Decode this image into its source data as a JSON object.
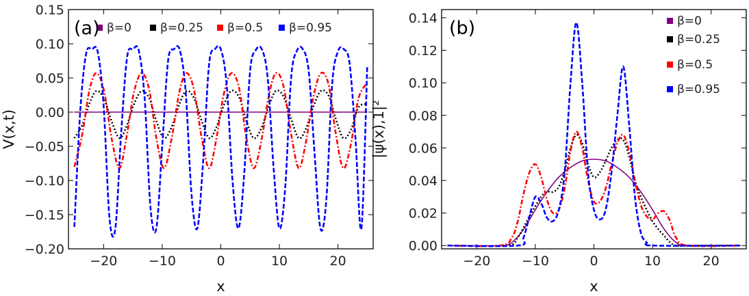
{
  "chart_data": [
    {
      "panel_label": "(a)",
      "type": "line",
      "xlabel": "x",
      "ylabel": "V(x,t)",
      "xlim": [
        -26,
        26
      ],
      "ylim": [
        -0.2,
        0.15
      ],
      "x_ticks": [
        -20,
        -10,
        0,
        10,
        20
      ],
      "x_tick_labels": [
        "−20",
        "−10",
        "0",
        "10",
        "20"
      ],
      "y_ticks": [
        -0.2,
        -0.15,
        -0.1,
        -0.05,
        0.0,
        0.05,
        0.1,
        0.15
      ],
      "y_tick_labels": [
        "−0.20",
        "−0.15",
        "−0.10",
        "−0.05",
        "0.00",
        "0.05",
        "0.10",
        "0.15"
      ],
      "legend_position": "top",
      "series": [
        {
          "name": "β=0",
          "color": "#800080",
          "style": "solid",
          "x": [
            -25,
            25
          ],
          "y": [
            0,
            0
          ]
        },
        {
          "name": "β=0.25",
          "color": "#000000",
          "style": "dotted",
          "x": [
            -25,
            -23.7,
            -22.4,
            -21.2,
            -19.9,
            -18.6,
            -17.3,
            -16.1,
            -14.8,
            -13.5,
            -12.2,
            -11.0,
            -9.7,
            -8.4,
            -7.1,
            -5.9,
            -4.6,
            -3.3,
            -2.0,
            -0.8,
            0.5,
            1.8,
            3.1,
            4.3,
            5.6,
            6.9,
            8.2,
            9.4,
            10.7,
            12.0,
            13.3,
            14.5,
            15.8,
            17.1,
            18.4,
            19.6,
            20.9,
            22.2,
            23.5,
            25.0
          ],
          "y": [
            -0.038,
            -0.02,
            0.013,
            0.031,
            0.019,
            -0.014,
            -0.038,
            -0.021,
            0.012,
            0.031,
            0.02,
            -0.013,
            -0.038,
            -0.022,
            0.011,
            0.031,
            0.021,
            -0.012,
            -0.038,
            -0.023,
            0.01,
            0.031,
            0.022,
            -0.011,
            -0.038,
            -0.024,
            0.009,
            0.031,
            0.023,
            -0.01,
            -0.038,
            -0.025,
            0.008,
            0.031,
            0.024,
            -0.009,
            -0.038,
            -0.026,
            0.007,
            0.012
          ]
        },
        {
          "name": "β=0.5",
          "color": "#ff0000",
          "style": "dashdot",
          "x": [
            -25,
            -23.7,
            -22.4,
            -21.2,
            -19.9,
            -18.6,
            -17.3,
            -16.1,
            -14.8,
            -13.5,
            -12.2,
            -11.0,
            -9.7,
            -8.4,
            -7.1,
            -5.9,
            -4.6,
            -3.3,
            -2.0,
            -0.8,
            0.5,
            1.8,
            3.1,
            4.3,
            5.6,
            6.9,
            8.2,
            9.4,
            10.7,
            12.0,
            13.3,
            14.5,
            15.8,
            17.1,
            18.4,
            19.6,
            20.9,
            22.2,
            23.5,
            25.0
          ],
          "y": [
            -0.08,
            -0.035,
            0.033,
            0.057,
            0.03,
            -0.04,
            -0.082,
            -0.037,
            0.03,
            0.057,
            0.032,
            -0.038,
            -0.082,
            -0.039,
            0.028,
            0.057,
            0.034,
            -0.036,
            -0.082,
            -0.041,
            0.026,
            0.057,
            0.036,
            -0.034,
            -0.082,
            -0.043,
            0.024,
            0.057,
            0.038,
            -0.032,
            -0.082,
            -0.045,
            0.022,
            0.057,
            0.04,
            -0.03,
            -0.082,
            -0.047,
            0.02,
            0.043
          ]
        },
        {
          "name": "β=0.95",
          "color": "#0000ff",
          "style": "dashed",
          "x": [
            -25,
            -24,
            -23,
            -22,
            -21,
            -20,
            -19,
            -18,
            -17,
            -16,
            -15,
            -14,
            -13,
            -12,
            -11,
            -10,
            -9,
            -8,
            -7,
            -6,
            -5,
            -4,
            -3,
            -2,
            -1,
            0,
            1,
            2,
            3,
            4,
            5,
            6,
            7,
            8,
            9,
            10,
            11,
            12,
            13,
            14,
            15,
            16,
            17,
            18,
            19,
            20,
            21,
            22,
            23,
            24,
            25
          ],
          "y": [
            -0.168,
            0.0,
            0.085,
            0.092,
            0.088,
            0.01,
            -0.155,
            -0.17,
            -0.03,
            0.08,
            0.092,
            0.09,
            0.02,
            -0.14,
            -0.17,
            -0.05,
            0.075,
            0.092,
            0.091,
            0.03,
            -0.12,
            -0.17,
            -0.07,
            0.07,
            0.092,
            0.092,
            0.04,
            -0.1,
            -0.17,
            -0.09,
            0.06,
            0.091,
            0.092,
            0.05,
            -0.08,
            -0.17,
            -0.11,
            0.05,
            0.09,
            0.092,
            0.06,
            -0.06,
            -0.17,
            -0.13,
            0.04,
            0.089,
            0.092,
            0.07,
            -0.04,
            -0.17,
            0.068
          ]
        }
      ]
    },
    {
      "panel_label": "(b)",
      "type": "line",
      "xlabel": "x",
      "ylabel": "|ψ(x),1|²",
      "xlim": [
        -26,
        26
      ],
      "ylim": [
        -0.002,
        0.145
      ],
      "x_ticks": [
        -20,
        -10,
        0,
        10,
        20
      ],
      "x_tick_labels": [
        "−20",
        "−10",
        "0",
        "10",
        "20"
      ],
      "y_ticks": [
        0.0,
        0.02,
        0.04,
        0.06,
        0.08,
        0.1,
        0.12,
        0.14
      ],
      "y_tick_labels": [
        "0.00",
        "0.02",
        "0.04",
        "0.06",
        "0.08",
        "0.10",
        "0.12",
        "0.14"
      ],
      "legend_position": "top-right",
      "series": [
        {
          "name": "β=0",
          "color": "#800080",
          "style": "solid",
          "x": [
            -25,
            -16,
            -14,
            -12,
            -10,
            -8,
            -6,
            -4,
            -2,
            0,
            2,
            4,
            6,
            8,
            10,
            12,
            14,
            16,
            25
          ],
          "y": [
            0.0,
            0.0,
            0.002,
            0.01,
            0.022,
            0.033,
            0.042,
            0.048,
            0.052,
            0.053,
            0.052,
            0.048,
            0.042,
            0.033,
            0.022,
            0.01,
            0.002,
            0.0,
            0.0
          ]
        },
        {
          "name": "β=0.25",
          "color": "#000000",
          "style": "dotted",
          "x": [
            -25,
            -15,
            -13,
            -11,
            -9,
            -8,
            -7,
            -6,
            -5,
            -4,
            -3,
            -2,
            -1,
            0,
            1,
            2,
            3,
            4,
            5,
            6,
            7,
            8,
            9,
            10,
            11,
            12,
            13,
            14,
            16,
            25
          ],
          "y": [
            0.0,
            0.0,
            0.005,
            0.018,
            0.03,
            0.033,
            0.033,
            0.036,
            0.046,
            0.06,
            0.068,
            0.063,
            0.05,
            0.042,
            0.045,
            0.052,
            0.06,
            0.065,
            0.065,
            0.055,
            0.04,
            0.03,
            0.022,
            0.015,
            0.01,
            0.006,
            0.002,
            0.0,
            0.0,
            0.0
          ]
        },
        {
          "name": "β=0.5",
          "color": "#ff0000",
          "style": "dashdot",
          "x": [
            -25,
            -16,
            -14,
            -13,
            -12,
            -11,
            -10,
            -9,
            -8,
            -7,
            -6,
            -5,
            -4,
            -3,
            -2,
            -1,
            0,
            1,
            2,
            3,
            4,
            5,
            6,
            7,
            8,
            9,
            10,
            11,
            12,
            13,
            14,
            16,
            25
          ],
          "y": [
            0.0,
            0.0,
            0.005,
            0.015,
            0.032,
            0.045,
            0.05,
            0.042,
            0.028,
            0.02,
            0.022,
            0.035,
            0.058,
            0.07,
            0.06,
            0.04,
            0.027,
            0.027,
            0.035,
            0.05,
            0.063,
            0.068,
            0.058,
            0.04,
            0.025,
            0.018,
            0.016,
            0.02,
            0.021,
            0.015,
            0.005,
            0.0,
            0.0
          ]
        },
        {
          "name": "β=0.95",
          "color": "#0000ff",
          "style": "dashed",
          "x": [
            -25,
            -13,
            -12,
            -11,
            -10,
            -9,
            -8,
            -7,
            -6,
            -5,
            -4,
            -3,
            -2,
            -1,
            0,
            1,
            2,
            3,
            4,
            5,
            6,
            7,
            8,
            9,
            10,
            25
          ],
          "y": [
            0.0,
            0.0,
            0.005,
            0.018,
            0.03,
            0.026,
            0.017,
            0.015,
            0.022,
            0.045,
            0.1,
            0.137,
            0.1,
            0.045,
            0.022,
            0.016,
            0.022,
            0.045,
            0.08,
            0.11,
            0.075,
            0.03,
            0.008,
            0.002,
            0.0,
            0.0
          ]
        }
      ]
    }
  ]
}
